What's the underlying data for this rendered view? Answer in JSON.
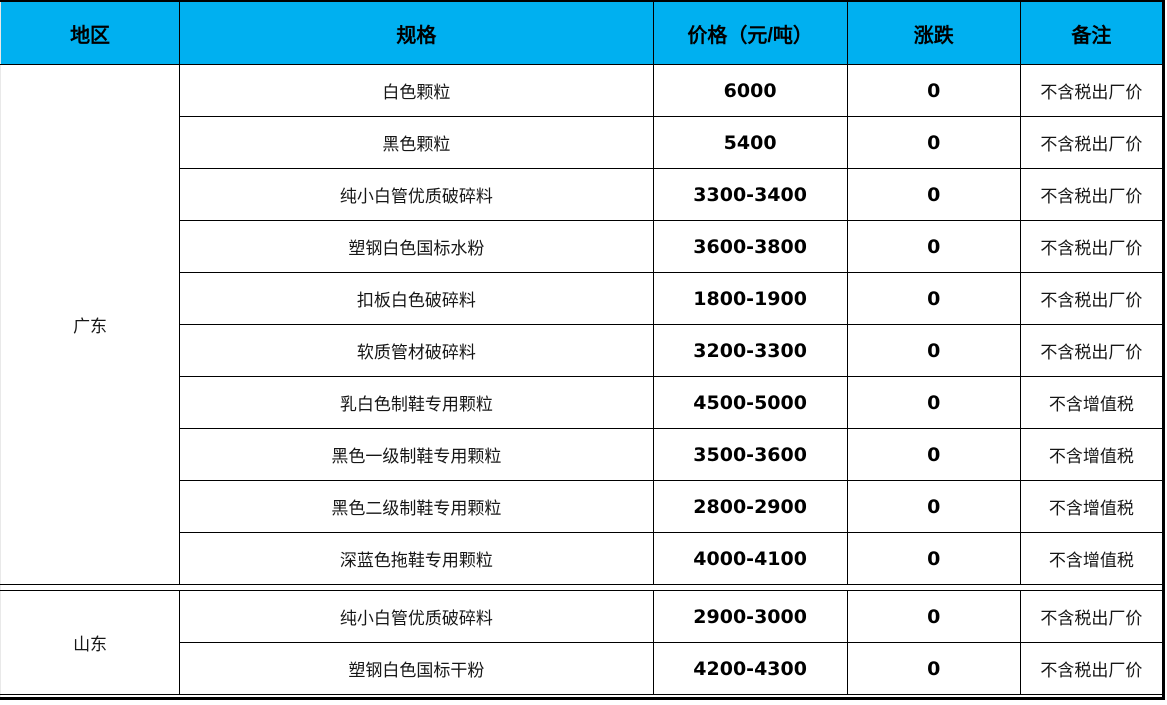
{
  "colors": {
    "header_bg": "#00B0F0",
    "header_text": "#000000",
    "grid": "#000000"
  },
  "table": {
    "columns": [
      {
        "key": "region",
        "label": "地区"
      },
      {
        "key": "spec",
        "label": "规格"
      },
      {
        "key": "price",
        "label": "价格（元/吨）"
      },
      {
        "key": "change",
        "label": "涨跌"
      },
      {
        "key": "note",
        "label": "备注"
      }
    ],
    "groups": [
      {
        "region": "广东",
        "rows": [
          {
            "spec": "白色颗粒",
            "price": "6000",
            "change": "0",
            "note": "不含税出厂价"
          },
          {
            "spec": "黑色颗粒",
            "price": "5400",
            "change": "0",
            "note": "不含税出厂价"
          },
          {
            "spec": "纯小白管优质破碎料",
            "price": "3300-3400",
            "change": "0",
            "note": "不含税出厂价"
          },
          {
            "spec": "塑钢白色国标水粉",
            "price": "3600-3800",
            "change": "0",
            "note": "不含税出厂价"
          },
          {
            "spec": "扣板白色破碎料",
            "price": "1800-1900",
            "change": "0",
            "note": "不含税出厂价"
          },
          {
            "spec": "软质管材破碎料",
            "price": "3200-3300",
            "change": "0",
            "note": "不含税出厂价"
          },
          {
            "spec": "乳白色制鞋专用颗粒",
            "price": "4500-5000",
            "change": "0",
            "note": "不含增值税"
          },
          {
            "spec": "黑色一级制鞋专用颗粒",
            "price": "3500-3600",
            "change": "0",
            "note": "不含增值税"
          },
          {
            "spec": "黑色二级制鞋专用颗粒",
            "price": "2800-2900",
            "change": "0",
            "note": "不含增值税"
          },
          {
            "spec": "深蓝色拖鞋专用颗粒",
            "price": "4000-4100",
            "change": "0",
            "note": "不含增值税"
          }
        ]
      },
      {
        "region": "山东",
        "rows": [
          {
            "spec": "纯小白管优质破碎料",
            "price": "2900-3000",
            "change": "0",
            "note": "不含税出厂价"
          },
          {
            "spec": "塑钢白色国标干粉",
            "price": "4200-4300",
            "change": "0",
            "note": "不含税出厂价"
          }
        ]
      }
    ]
  }
}
